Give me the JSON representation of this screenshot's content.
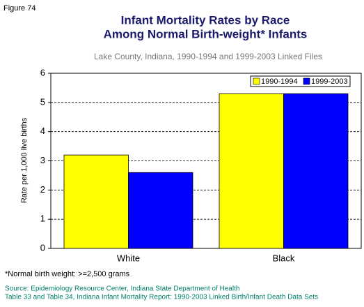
{
  "figure_label": "Figure 74",
  "footnote": "*Normal birth weight: >=2,500 grams",
  "source": [
    "Source: Epidemiology Resource Center, Indiana State Department of Health",
    "Table 33 and Table 34, Indiana Infant Mortality Report: 1990-2003 Linked Birth/Infant Death Data Sets"
  ],
  "chart_data": {
    "type": "bar",
    "title": [
      "Infant Mortality Rates by Race",
      "Among Normal Birth-weight* Infants"
    ],
    "subtitle": "Lake County, Indiana, 1990-1994 and 1999-2003 Linked Files",
    "y_label": "Rate per 1,000 live births",
    "categories": [
      "White",
      "Black"
    ],
    "series": [
      {
        "name": "1990-1994",
        "color": "#ffff00",
        "values": [
          3.2,
          5.3
        ]
      },
      {
        "name": "1999-2003",
        "color": "#0000ff",
        "values": [
          2.6,
          5.3
        ]
      }
    ],
    "ylim": [
      0,
      6
    ],
    "yticks": [
      0,
      1,
      2,
      3,
      4,
      5,
      6
    ],
    "grid": true,
    "legend": "top-right"
  }
}
